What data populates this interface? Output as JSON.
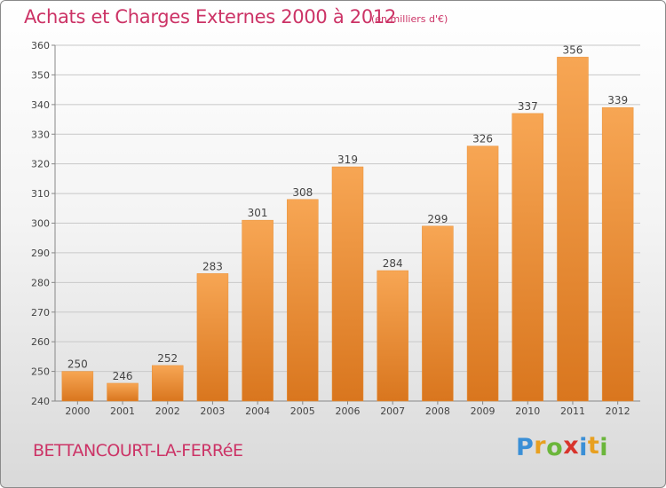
{
  "header": {
    "title": "Achats et Charges Externes 2000 à 2012",
    "unit": "(en milliers d'€)"
  },
  "footer": {
    "place": "BETTANCOURT-LA-FERRéE",
    "logo_letters": [
      {
        "ch": "P",
        "color": "#3a8fd6"
      },
      {
        "ch": "r",
        "color": "#e8a020"
      },
      {
        "ch": "o",
        "color": "#6bb63b"
      },
      {
        "ch": "x",
        "color": "#d8342c"
      },
      {
        "ch": "i",
        "color": "#3a8fd6"
      },
      {
        "ch": "t",
        "color": "#e8a020"
      },
      {
        "ch": "i",
        "color": "#6bb63b"
      }
    ]
  },
  "colors": {
    "bar_top": "#f7a654",
    "bar_bottom": "#d9761e",
    "accent": "#cc3366"
  },
  "chart_data": {
    "type": "bar",
    "categories": [
      "2000",
      "2001",
      "2002",
      "2003",
      "2004",
      "2005",
      "2006",
      "2007",
      "2008",
      "2009",
      "2010",
      "2011",
      "2012"
    ],
    "values": [
      250,
      246,
      252,
      283,
      301,
      308,
      319,
      284,
      299,
      326,
      337,
      356,
      339
    ],
    "ylim": [
      240,
      360
    ],
    "yticks": [
      240,
      250,
      260,
      270,
      280,
      290,
      300,
      310,
      320,
      330,
      340,
      350,
      360
    ],
    "grid": true
  }
}
